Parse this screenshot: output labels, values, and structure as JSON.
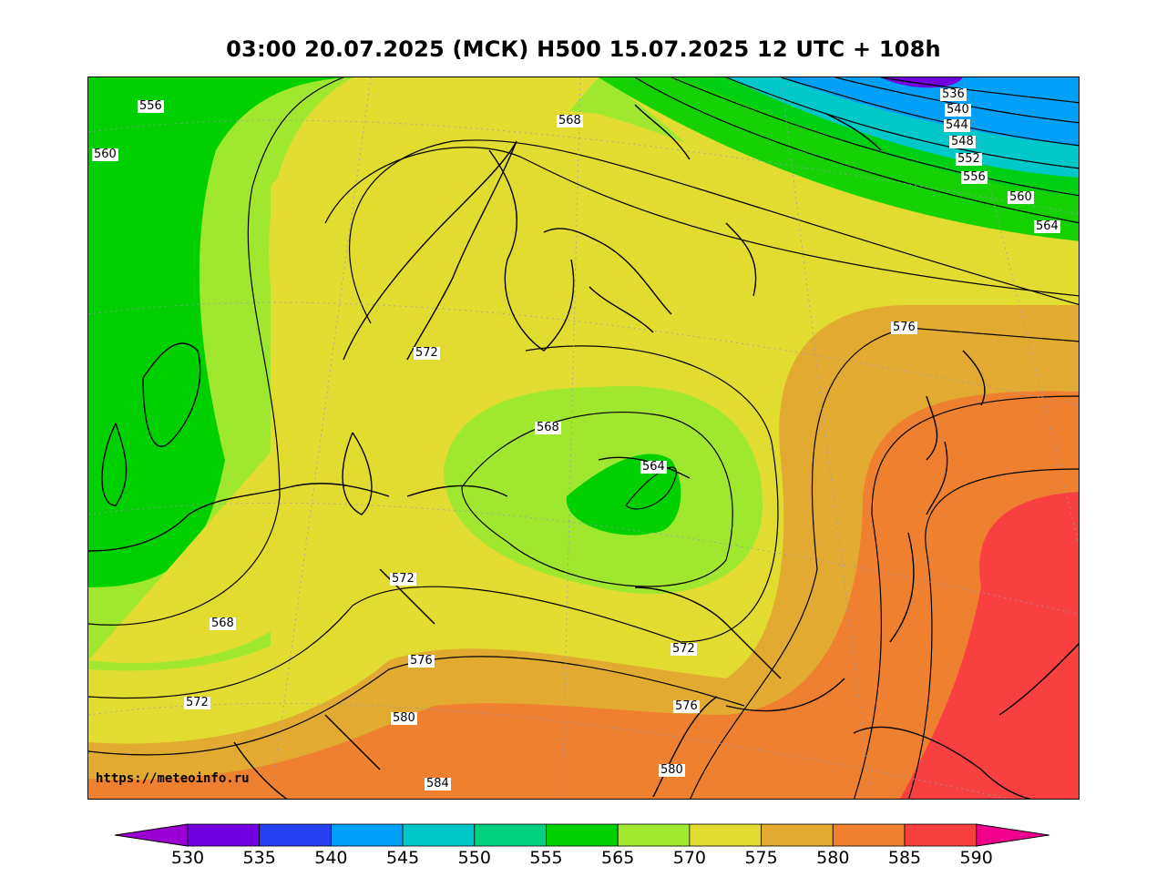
{
  "title": "03:00 20.07.2025 (МСК) H500  15.07.2025 12 UTC + 108h",
  "watermark": "https://meteoinfo.ru",
  "contour_labels": [
    {
      "text": "556"
    },
    {
      "text": "560"
    },
    {
      "text": "568"
    },
    {
      "text": "536"
    },
    {
      "text": "540"
    },
    {
      "text": "544"
    },
    {
      "text": "548"
    },
    {
      "text": "552"
    },
    {
      "text": "556"
    },
    {
      "text": "560"
    },
    {
      "text": "564"
    },
    {
      "text": "576"
    },
    {
      "text": "572"
    },
    {
      "text": "568"
    },
    {
      "text": "564"
    },
    {
      "text": "572"
    },
    {
      "text": "568"
    },
    {
      "text": "576"
    },
    {
      "text": "572"
    },
    {
      "text": "572"
    },
    {
      "text": "580"
    },
    {
      "text": "576"
    },
    {
      "text": "584"
    },
    {
      "text": "580"
    }
  ],
  "colorbar": {
    "ticks": [
      "530",
      "535",
      "540",
      "545",
      "550",
      "555",
      "565",
      "570",
      "575",
      "580",
      "585",
      "590"
    ],
    "colors": [
      "#8a00d8",
      "#7000e0",
      "#2440f0",
      "#00a0f8",
      "#00c8c8",
      "#00d080",
      "#00d000",
      "#a0e830",
      "#e2dc30",
      "#e2aa30",
      "#ef8030",
      "#f84040"
    ],
    "under_color": "#9b00d3",
    "over_color": "#f0008c"
  }
}
